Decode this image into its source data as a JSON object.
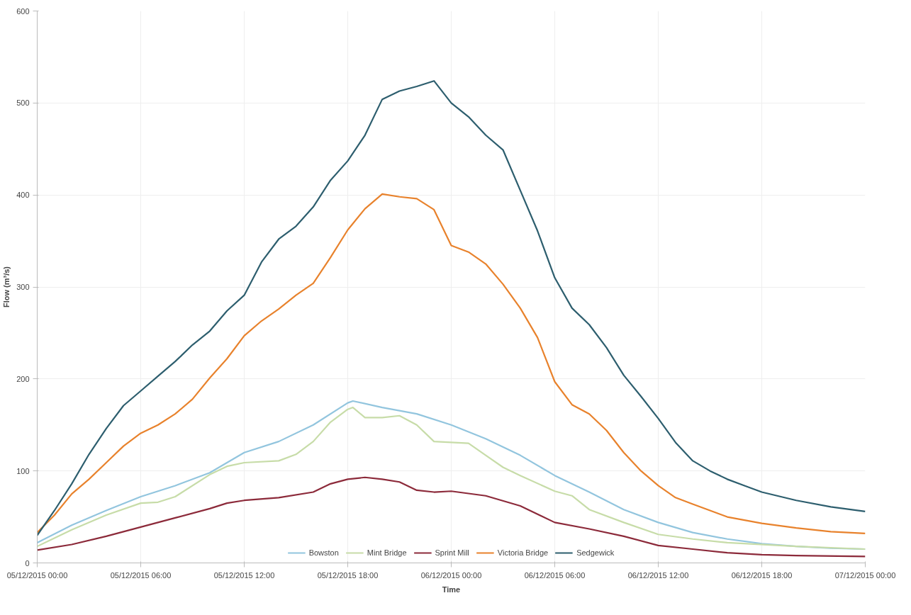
{
  "chart_data": {
    "type": "line",
    "xlabel": "Time",
    "ylabel": "Flow (m³/s)",
    "xlim": [
      "2015-12-05T00:00",
      "2015-12-07T00:00"
    ],
    "ylim": [
      0,
      600
    ],
    "xticks": [
      {
        "value": "2015-12-05T00:00",
        "label": "05/12/2015 00:00"
      },
      {
        "value": "2015-12-05T06:00",
        "label": "05/12/2015 06:00"
      },
      {
        "value": "2015-12-05T12:00",
        "label": "05/12/2015 12:00"
      },
      {
        "value": "2015-12-05T18:00",
        "label": "05/12/2015 18:00"
      },
      {
        "value": "2015-12-06T00:00",
        "label": "06/12/2015 00:00"
      },
      {
        "value": "2015-12-06T06:00",
        "label": "06/12/2015 06:00"
      },
      {
        "value": "2015-12-06T12:00",
        "label": "06/12/2015 12:00"
      },
      {
        "value": "2015-12-06T18:00",
        "label": "06/12/2015 18:00"
      },
      {
        "value": "2015-12-07T00:00",
        "label": "07/12/2015 00:00"
      }
    ],
    "yticks": [
      0,
      100,
      200,
      300,
      400,
      500,
      600
    ],
    "grid": true,
    "legend": "bottom",
    "marker": "none",
    "line_style": "solid",
    "series": [
      {
        "name": "Bowston",
        "color": "#92c5de",
        "x": [
          "2015-12-05T00:00",
          "2015-12-05T02:00",
          "2015-12-05T04:00",
          "2015-12-05T06:00",
          "2015-12-05T08:00",
          "2015-12-05T10:00",
          "2015-12-05T12:00",
          "2015-12-05T14:00",
          "2015-12-05T16:00",
          "2015-12-05T18:00",
          "2015-12-05T18:18",
          "2015-12-05T20:00",
          "2015-12-05T22:00",
          "2015-12-06T00:00",
          "2015-12-06T02:00",
          "2015-12-06T04:00",
          "2015-12-06T06:00",
          "2015-12-06T08:00",
          "2015-12-06T10:00",
          "2015-12-06T12:00",
          "2015-12-06T14:00",
          "2015-12-06T16:00",
          "2015-12-06T18:00",
          "2015-12-06T20:00",
          "2015-12-06T22:00",
          "2015-12-07T00:00"
        ],
        "values": [
          22,
          41,
          57,
          72,
          84,
          98,
          120,
          132,
          150,
          174,
          176,
          169,
          162,
          150,
          135,
          117,
          95,
          77,
          58,
          44,
          33,
          26,
          21,
          18,
          16,
          15
        ]
      },
      {
        "name": "Mint Bridge",
        "color": "#c7dca8",
        "x": [
          "2015-12-05T00:00",
          "2015-12-05T02:00",
          "2015-12-05T04:00",
          "2015-12-05T06:00",
          "2015-12-05T07:00",
          "2015-12-05T08:00",
          "2015-12-05T10:00",
          "2015-12-05T11:00",
          "2015-12-05T12:00",
          "2015-12-05T14:00",
          "2015-12-05T15:00",
          "2015-12-05T16:00",
          "2015-12-05T17:00",
          "2015-12-05T18:00",
          "2015-12-05T18:18",
          "2015-12-05T19:00",
          "2015-12-05T20:00",
          "2015-12-05T21:00",
          "2015-12-05T22:00",
          "2015-12-05T23:00",
          "2015-12-06T00:00",
          "2015-12-06T01:00",
          "2015-12-06T02:00",
          "2015-12-06T03:00",
          "2015-12-06T04:00",
          "2015-12-06T06:00",
          "2015-12-06T07:00",
          "2015-12-06T08:00",
          "2015-12-06T10:00",
          "2015-12-06T12:00",
          "2015-12-06T14:00",
          "2015-12-06T16:00",
          "2015-12-06T20:00",
          "2015-12-07T00:00"
        ],
        "values": [
          18,
          36,
          52,
          65,
          66,
          72,
          96,
          105,
          109,
          111,
          118,
          132,
          153,
          167,
          169,
          158,
          158,
          160,
          150,
          132,
          131,
          130,
          117,
          104,
          95,
          78,
          73,
          58,
          44,
          31,
          26,
          22,
          18,
          15
        ]
      },
      {
        "name": "Sprint Mill",
        "color": "#8c2a3a",
        "x": [
          "2015-12-05T00:00",
          "2015-12-05T02:00",
          "2015-12-05T04:00",
          "2015-12-05T06:00",
          "2015-12-05T08:00",
          "2015-12-05T10:00",
          "2015-12-05T11:00",
          "2015-12-05T12:00",
          "2015-12-05T14:00",
          "2015-12-05T16:00",
          "2015-12-05T17:00",
          "2015-12-05T18:00",
          "2015-12-05T19:00",
          "2015-12-05T20:00",
          "2015-12-05T21:00",
          "2015-12-05T22:00",
          "2015-12-05T23:00",
          "2015-12-06T00:00",
          "2015-12-06T02:00",
          "2015-12-06T04:00",
          "2015-12-06T06:00",
          "2015-12-06T08:00",
          "2015-12-06T10:00",
          "2015-12-06T12:00",
          "2015-12-06T14:00",
          "2015-12-06T16:00",
          "2015-12-06T18:00",
          "2015-12-06T20:00",
          "2015-12-07T00:00"
        ],
        "values": [
          14,
          20,
          29,
          39,
          49,
          59,
          65,
          68,
          71,
          77,
          86,
          91,
          93,
          91,
          88,
          79,
          77,
          78,
          73,
          62,
          44,
          37,
          29,
          19,
          15,
          11,
          9,
          8,
          7
        ]
      },
      {
        "name": "Victoria Bridge",
        "color": "#e8822c",
        "x": [
          "2015-12-05T00:00",
          "2015-12-05T01:00",
          "2015-12-05T02:00",
          "2015-12-05T03:00",
          "2015-12-05T04:00",
          "2015-12-05T05:00",
          "2015-12-05T06:00",
          "2015-12-05T07:00",
          "2015-12-05T08:00",
          "2015-12-05T09:00",
          "2015-12-05T10:00",
          "2015-12-05T11:00",
          "2015-12-05T12:00",
          "2015-12-05T13:00",
          "2015-12-05T14:00",
          "2015-12-05T15:00",
          "2015-12-05T16:00",
          "2015-12-05T17:00",
          "2015-12-05T18:00",
          "2015-12-05T19:00",
          "2015-12-05T20:00",
          "2015-12-05T21:00",
          "2015-12-05T22:00",
          "2015-12-05T23:00",
          "2015-12-06T00:00",
          "2015-12-06T01:00",
          "2015-12-06T02:00",
          "2015-12-06T03:00",
          "2015-12-06T04:00",
          "2015-12-06T05:00",
          "2015-12-06T06:00",
          "2015-12-06T07:00",
          "2015-12-06T08:00",
          "2015-12-06T09:00",
          "2015-12-06T10:00",
          "2015-12-06T11:00",
          "2015-12-06T12:00",
          "2015-12-06T13:00",
          "2015-12-06T14:00",
          "2015-12-06T15:00",
          "2015-12-06T16:00",
          "2015-12-06T18:00",
          "2015-12-06T20:00",
          "2015-12-06T22:00",
          "2015-12-07T00:00"
        ],
        "values": [
          33,
          52,
          75,
          91,
          109,
          127,
          141,
          150,
          162,
          178,
          201,
          222,
          247,
          263,
          276,
          291,
          304,
          332,
          362,
          385,
          401,
          398,
          396,
          384,
          345,
          338,
          325,
          303,
          277,
          245,
          197,
          172,
          162,
          144,
          120,
          100,
          84,
          71,
          64,
          57,
          50,
          43,
          38,
          34,
          32
        ]
      },
      {
        "name": "Sedgewick",
        "color": "#2d5e6e",
        "x": [
          "2015-12-05T00:00",
          "2015-12-05T01:00",
          "2015-12-05T02:00",
          "2015-12-05T03:00",
          "2015-12-05T04:00",
          "2015-12-05T05:00",
          "2015-12-05T06:00",
          "2015-12-05T07:00",
          "2015-12-05T08:00",
          "2015-12-05T09:00",
          "2015-12-05T10:00",
          "2015-12-05T11:00",
          "2015-12-05T12:00",
          "2015-12-05T13:00",
          "2015-12-05T14:00",
          "2015-12-05T15:00",
          "2015-12-05T16:00",
          "2015-12-05T17:00",
          "2015-12-05T18:00",
          "2015-12-05T19:00",
          "2015-12-05T20:00",
          "2015-12-05T21:00",
          "2015-12-05T22:00",
          "2015-12-05T23:00",
          "2015-12-06T00:00",
          "2015-12-06T01:00",
          "2015-12-06T02:00",
          "2015-12-06T03:00",
          "2015-12-06T04:00",
          "2015-12-06T05:00",
          "2015-12-06T06:00",
          "2015-12-06T07:00",
          "2015-12-06T08:00",
          "2015-12-06T09:00",
          "2015-12-06T10:00",
          "2015-12-06T11:00",
          "2015-12-06T12:00",
          "2015-12-06T13:00",
          "2015-12-06T14:00",
          "2015-12-06T15:00",
          "2015-12-06T16:00",
          "2015-12-06T17:00",
          "2015-12-06T18:00",
          "2015-12-06T20:00",
          "2015-12-06T22:00",
          "2015-12-07T00:00"
        ],
        "values": [
          30,
          57,
          86,
          118,
          146,
          171,
          187,
          203,
          219,
          237,
          252,
          274,
          291,
          327,
          352,
          366,
          387,
          416,
          437,
          465,
          504,
          513,
          518,
          524,
          500,
          485,
          465,
          449,
          405,
          361,
          310,
          277,
          259,
          234,
          204,
          181,
          157,
          131,
          111,
          100,
          91,
          84,
          77,
          68,
          61,
          56
        ]
      }
    ]
  }
}
